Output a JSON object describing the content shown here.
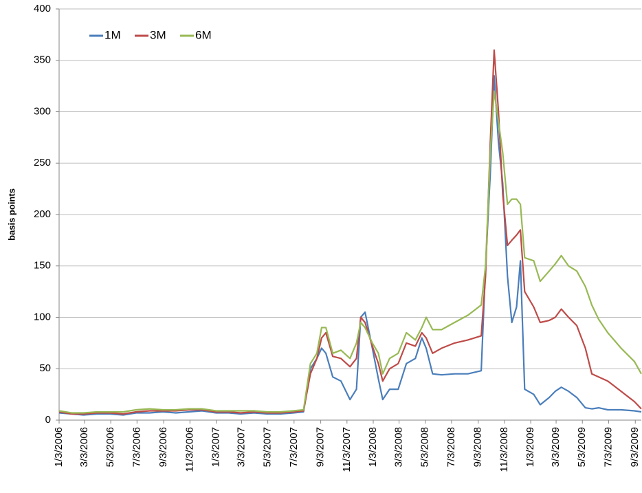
{
  "chart_data": {
    "type": "line",
    "y_label": "basis points",
    "x": [
      "1/3/2006",
      "2/1/2006",
      "3/1/2006",
      "4/1/2006",
      "5/1/2006",
      "6/1/2006",
      "7/1/2006",
      "8/1/2006",
      "9/1/2006",
      "10/1/2006",
      "11/1/2006",
      "12/1/2006",
      "1/3/2007",
      "2/1/2007",
      "3/1/2007",
      "4/1/2007",
      "5/1/2007",
      "6/1/2007",
      "7/1/2007",
      "7/25/2007",
      "8/10/2007",
      "8/25/2007",
      "9/5/2007",
      "9/15/2007",
      "10/1/2007",
      "10/20/2007",
      "11/10/2007",
      "11/25/2007",
      "12/5/2007",
      "12/15/2007",
      "1/1/2008",
      "1/15/2008",
      "1/25/2008",
      "2/10/2008",
      "3/1/2008",
      "3/20/2008",
      "4/10/2008",
      "4/25/2008",
      "5/5/2008",
      "5/20/2008",
      "6/10/2008",
      "7/10/2008",
      "8/10/2008",
      "9/10/2008",
      "9/20/2008",
      "10/1/2008",
      "10/10/2008",
      "10/20/2008",
      "10/30/2008",
      "11/10/2008",
      "11/20/2008",
      "12/1/2008",
      "12/10/2008",
      "12/20/2008",
      "1/10/2009",
      "1/25/2009",
      "2/15/2009",
      "3/1/2009",
      "3/15/2009",
      "4/1/2009",
      "4/20/2009",
      "5/10/2009",
      "5/25/2009",
      "6/10/2009",
      "7/1/2009",
      "8/1/2009",
      "9/1/2009",
      "9/17/2009"
    ],
    "series": [
      {
        "name": "1M",
        "color": "#4a7ebb",
        "values": [
          7,
          6,
          5,
          6,
          6,
          5,
          7,
          7,
          8,
          7,
          8,
          9,
          7,
          7,
          6,
          7,
          6,
          6,
          7,
          8,
          50,
          60,
          70,
          65,
          42,
          38,
          20,
          30,
          100,
          105,
          70,
          40,
          20,
          30,
          30,
          55,
          60,
          80,
          70,
          45,
          44,
          45,
          45,
          48,
          150,
          240,
          335,
          270,
          230,
          140,
          95,
          110,
          155,
          30,
          25,
          15,
          22,
          28,
          32,
          28,
          22,
          12,
          11,
          12,
          10,
          10,
          9,
          8
        ]
      },
      {
        "name": "3M",
        "color": "#be4b48",
        "values": [
          8,
          6,
          6,
          7,
          7,
          6,
          8,
          9,
          9,
          9,
          10,
          10,
          8,
          8,
          7,
          8,
          7,
          7,
          8,
          9,
          45,
          60,
          80,
          85,
          62,
          60,
          52,
          60,
          100,
          95,
          72,
          55,
          38,
          50,
          55,
          75,
          72,
          85,
          80,
          65,
          70,
          75,
          78,
          82,
          140,
          270,
          360,
          300,
          220,
          170,
          175,
          180,
          185,
          125,
          110,
          95,
          97,
          100,
          108,
          100,
          92,
          70,
          45,
          42,
          38,
          28,
          18,
          11
        ]
      },
      {
        "name": "6M",
        "color": "#98b954",
        "values": [
          9,
          7,
          7,
          8,
          8,
          8,
          10,
          11,
          10,
          10,
          11,
          11,
          9,
          9,
          9,
          9,
          8,
          8,
          9,
          10,
          55,
          65,
          90,
          90,
          65,
          68,
          60,
          75,
          95,
          90,
          75,
          65,
          45,
          60,
          65,
          85,
          78,
          90,
          100,
          88,
          88,
          95,
          102,
          112,
          150,
          260,
          320,
          290,
          260,
          210,
          215,
          215,
          210,
          158,
          155,
          135,
          145,
          152,
          160,
          150,
          145,
          130,
          112,
          98,
          85,
          70,
          57,
          45
        ]
      }
    ],
    "xlim": [
      "1/3/2006",
      "9/17/2009"
    ],
    "xticks": [
      "1/3/2006",
      "3/3/2006",
      "5/3/2006",
      "7/3/2006",
      "9/3/2006",
      "11/3/2006",
      "1/3/2007",
      "3/3/2007",
      "5/3/2007",
      "7/3/2007",
      "9/3/2007",
      "11/3/2007",
      "1/3/2008",
      "3/3/2008",
      "5/3/2008",
      "7/3/2008",
      "9/3/2008",
      "11/3/2008",
      "1/3/2009",
      "3/3/2009",
      "5/3/2009",
      "7/3/2009",
      "9/3/2009"
    ],
    "ylim": [
      0,
      400
    ],
    "yticks": [
      0,
      50,
      100,
      150,
      200,
      250,
      300,
      350,
      400
    ],
    "grid": true,
    "legend": "top-left"
  }
}
